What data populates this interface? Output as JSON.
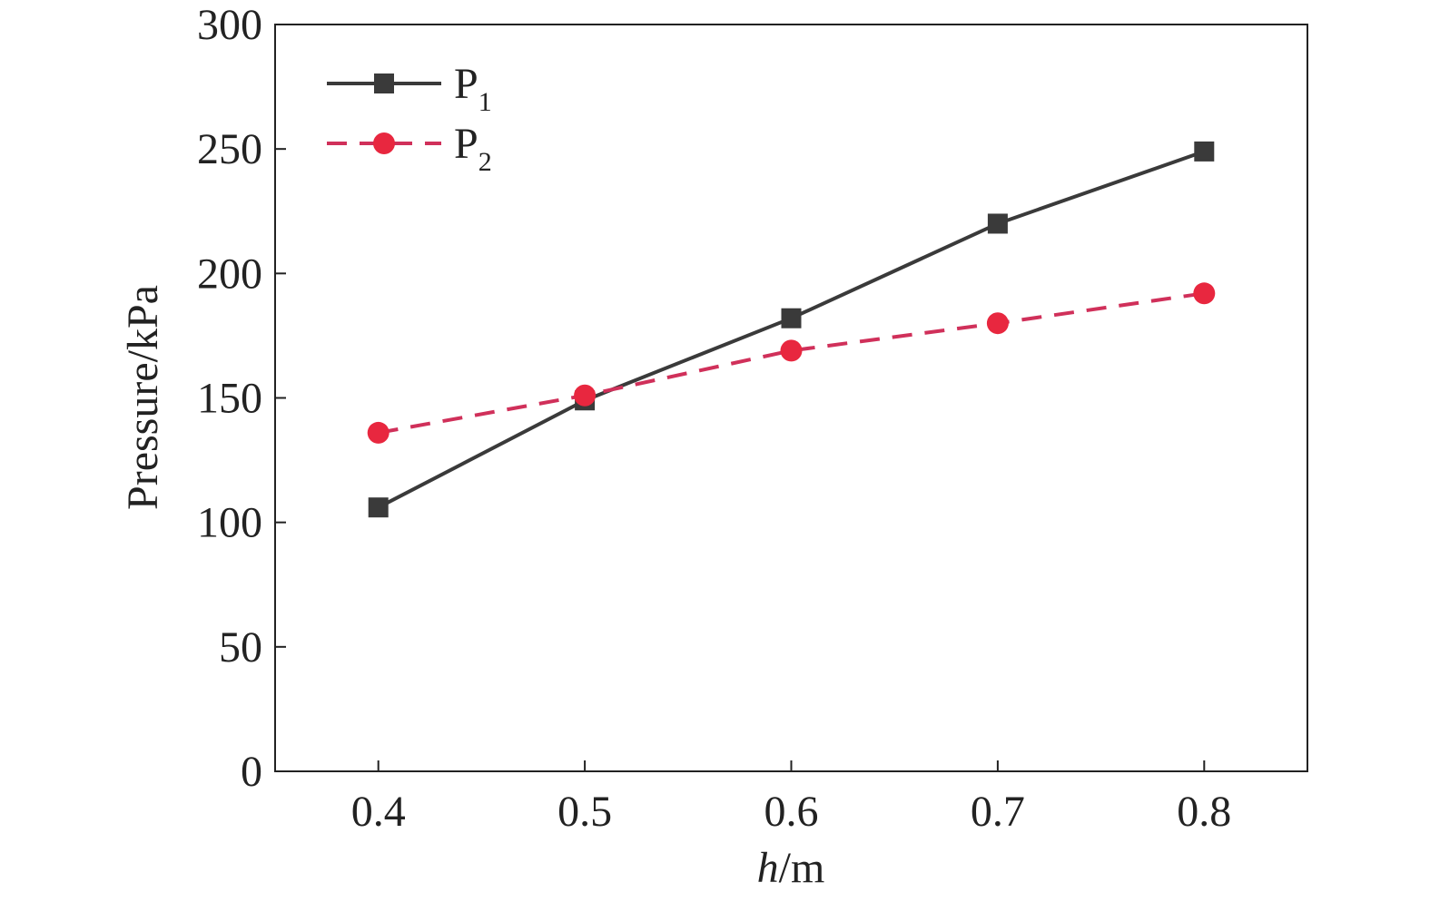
{
  "chart_data": {
    "type": "line",
    "x": [
      0.4,
      0.5,
      0.6,
      0.7,
      0.8
    ],
    "xlim": [
      0.35,
      0.85
    ],
    "ylim": [
      0,
      300
    ],
    "x_ticks": [
      "0.4",
      "0.5",
      "0.6",
      "0.7",
      "0.8"
    ],
    "y_ticks": [
      "0",
      "50",
      "100",
      "150",
      "200",
      "250",
      "300"
    ],
    "xlabel_italic": "h",
    "xlabel_rest": "/m",
    "ylabel": "Pressure/kPa",
    "grid": false,
    "legend_position": "top-left",
    "series": [
      {
        "name_main": "P",
        "name_sub": "1",
        "values": [
          106,
          149,
          182,
          220,
          249
        ],
        "color": "#3a3a3a",
        "line_style": "solid",
        "marker": "square"
      },
      {
        "name_main": "P",
        "name_sub": "2",
        "values": [
          136,
          151,
          169,
          180,
          192
        ],
        "color": "#e8273f",
        "line_color": "#d0305a",
        "line_style": "dashed",
        "marker": "circle"
      }
    ]
  }
}
